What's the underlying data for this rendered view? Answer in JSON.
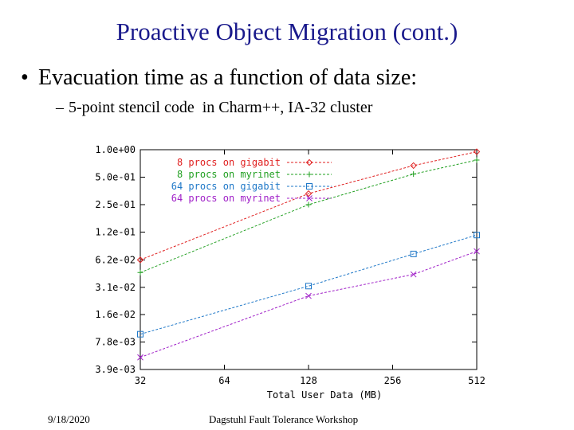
{
  "slide": {
    "title": "Proactive Object Migration (cont.)",
    "bullet_marker": "•",
    "bullet": "Evacuation time as a function of data size:",
    "sub_marker": "–",
    "sub_bullet": "5-point stencil code  in Charm++, IA-32 cluster",
    "footer_date": "9/18/2020",
    "footer_event": "Dagstuhl Fault Tolerance Workshop"
  },
  "chart_data": {
    "type": "line",
    "xlabel": "Total User Data (MB)",
    "ylabel": "",
    "x_scale": "log2",
    "y_scale": "log",
    "x_ticks": [
      32,
      64,
      128,
      256,
      512
    ],
    "x_tick_labels": [
      "32",
      "64",
      "128",
      "256",
      "512"
    ],
    "y_ticks": [
      0.0039,
      0.0078,
      0.0156,
      0.031,
      0.062,
      0.125,
      0.25,
      0.5,
      1.0
    ],
    "y_tick_labels": [
      "3.9e-03",
      "7.8e-03",
      "1.6e-02",
      "3.1e-02",
      "6.2e-02",
      "1.2e-01",
      "2.5e-01",
      "5.0e-01",
      "1.0e+00"
    ],
    "xlim": [
      32,
      512
    ],
    "ylim": [
      0.0039,
      1.0
    ],
    "legend_position": "top-left",
    "series": [
      {
        "name": "8 procs on gigabit",
        "marker": "diamond",
        "color": "#e02020",
        "x": [
          32,
          128,
          304,
          512
        ],
        "y": [
          0.062,
          0.33,
          0.67,
          0.95
        ]
      },
      {
        "name": "8 procs on myrinet",
        "marker": "plus",
        "color": "#22a022",
        "x": [
          32,
          128,
          304,
          512
        ],
        "y": [
          0.045,
          0.25,
          0.54,
          0.77
        ]
      },
      {
        "name": "64 procs on gigabit",
        "marker": "square",
        "color": "#1f78c8",
        "x": [
          32,
          128,
          304,
          512
        ],
        "y": [
          0.0095,
          0.032,
          0.072,
          0.116
        ]
      },
      {
        "name": "64 procs on myrinet",
        "marker": "x",
        "color": "#a020c8",
        "x": [
          32,
          128,
          304,
          512
        ],
        "y": [
          0.0053,
          0.025,
          0.043,
          0.077
        ]
      }
    ]
  }
}
